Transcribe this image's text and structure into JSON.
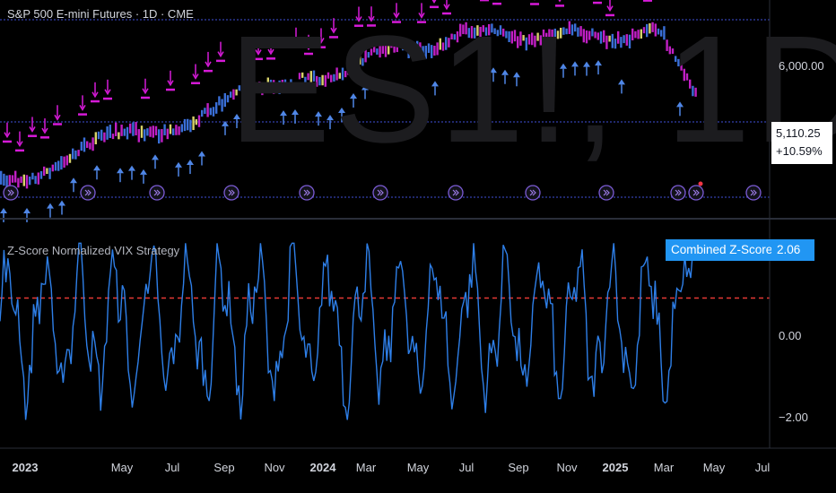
{
  "header": {
    "title": "S&P 500 E-mini Futures · 1D · CME",
    "watermark": "ES1!, 1D"
  },
  "price_axis": {
    "label_top": "6,000.00"
  },
  "price_tag": {
    "price": "5,110.25",
    "change": "+10.59%"
  },
  "indicator": {
    "title": "Z-Score Normalized VIX Strategy",
    "series_label": "Combined Z-Score",
    "value": "2.06",
    "axis_labels": [
      "0.00",
      "−2.00"
    ],
    "threshold": 1,
    "ylim": [
      -2.3,
      2.6
    ]
  },
  "time_axis": {
    "labels": [
      "2023",
      "May",
      "Jul",
      "Sep",
      "Nov",
      "2024",
      "Mar",
      "May",
      "Jul",
      "Sep",
      "Nov",
      "2025",
      "Mar",
      "May",
      "Jul"
    ]
  },
  "colors": {
    "background": "#000000",
    "line": "#2e7fe8",
    "threshold": "#e53935",
    "long_marker": "#4f86e6",
    "short_marker": "#d61ad8",
    "candle_up": "#3a6fd8",
    "candle_down": "#c01fc4",
    "candle_neutral": "#d8d36a",
    "grid_dotted": "#3f51d8"
  },
  "chart_data": {
    "type": "line",
    "title": "Combined Z-Score",
    "xlabel": "",
    "ylabel": "",
    "ylim": [
      -2.3,
      2.6
    ],
    "series": [
      {
        "name": "Combined Z-Score",
        "values": []
      }
    ]
  }
}
